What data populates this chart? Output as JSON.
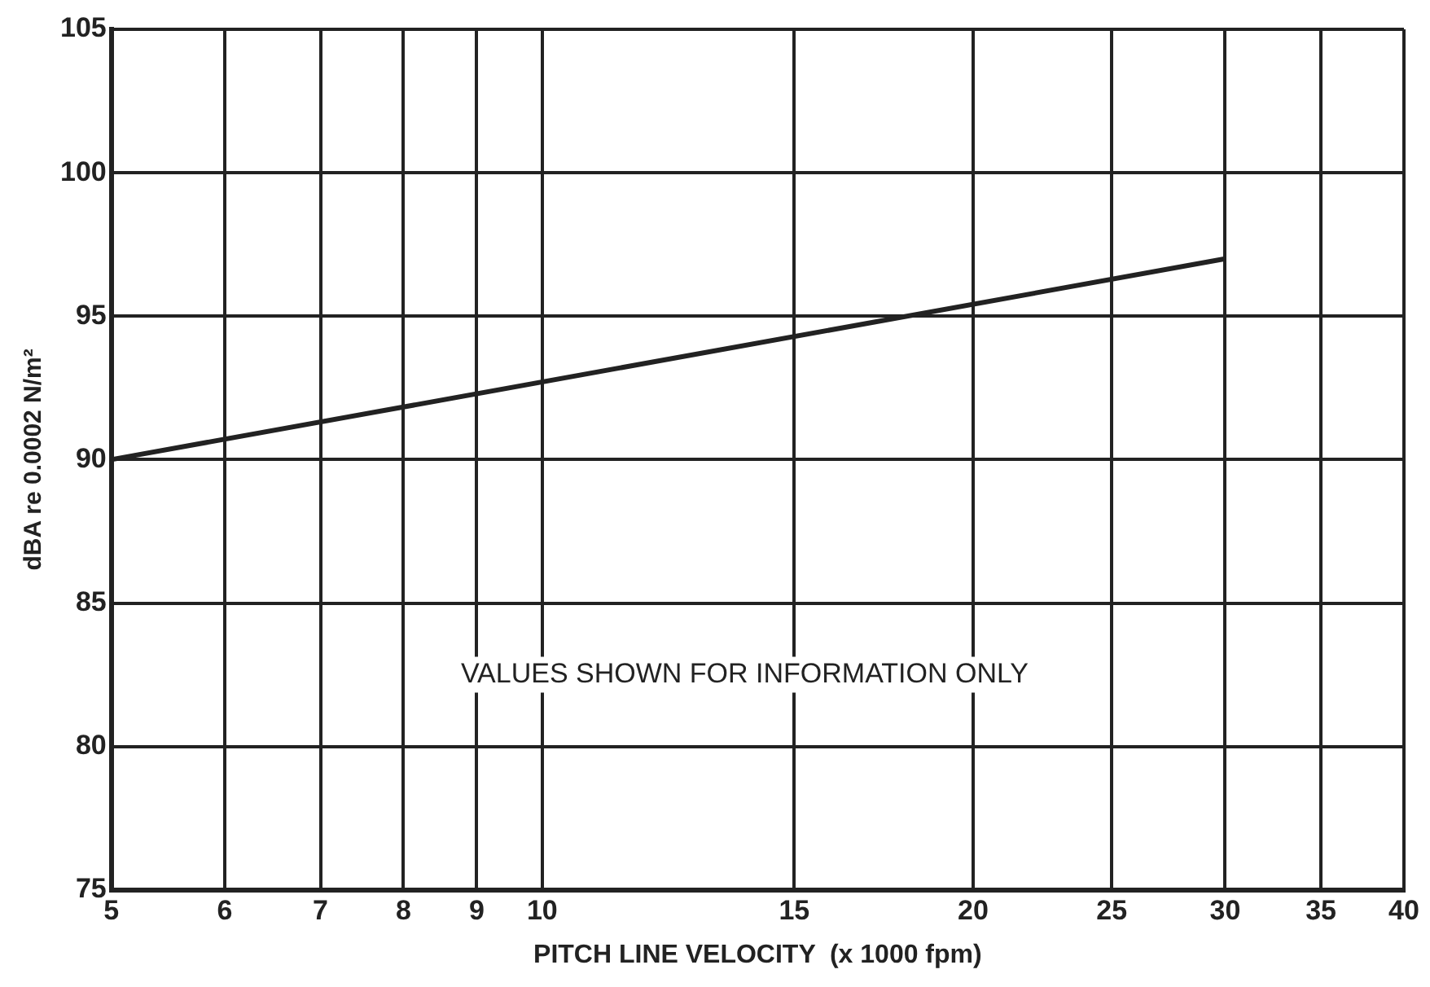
{
  "chart_data": {
    "type": "line",
    "xlabel": "PITCH LINE VELOCITY  (x 1000 fpm)",
    "ylabel": "dBA re 0.0002 N/m²",
    "x": [
      5,
      30
    ],
    "series": [
      {
        "color": "#222222",
        "values": [
          90,
          97
        ]
      }
    ],
    "log": "x",
    "xlim": [
      5,
      40
    ],
    "xticks": [
      5,
      6,
      7,
      8,
      9,
      10,
      15,
      20,
      25,
      30,
      35,
      40
    ],
    "ylim": [
      75,
      105
    ],
    "yticks": [
      75,
      80,
      85,
      90,
      95,
      100,
      105
    ],
    "grid": true,
    "legend": false,
    "marker": "none",
    "line_style": "solid",
    "annotations": [
      "VALUES SHOWN FOR INFORMATION ONLY"
    ]
  }
}
